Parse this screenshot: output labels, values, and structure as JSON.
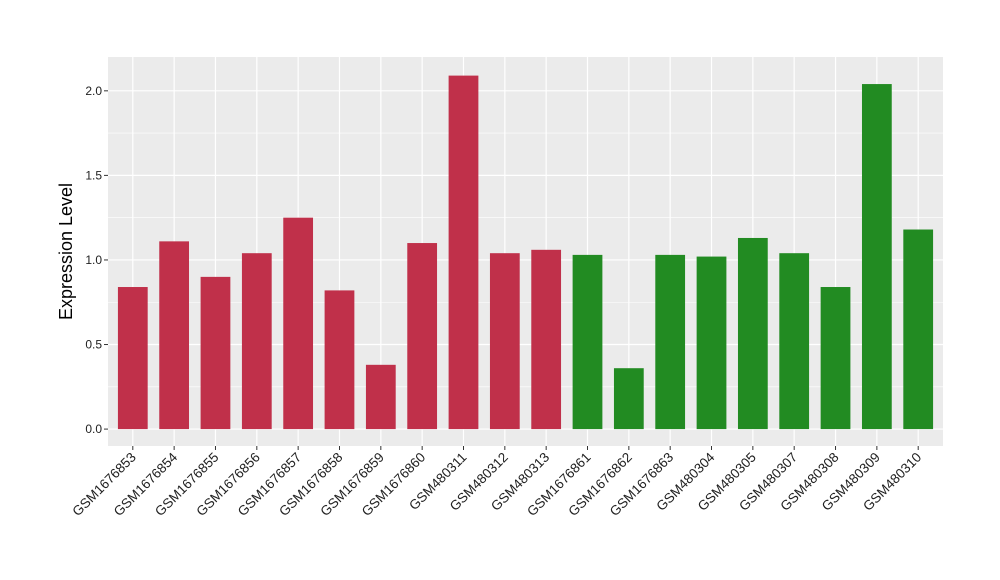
{
  "chart_data": {
    "type": "bar",
    "title": "",
    "xlabel": "",
    "ylabel": "Expression Level",
    "ylim": [
      -0.1,
      2.2
    ],
    "yticks": [
      0.0,
      0.5,
      1.0,
      1.5,
      2.0
    ],
    "ytick_labels": [
      "0.0",
      "0.5",
      "1.0",
      "1.5",
      "2.0"
    ],
    "grid": true,
    "legend": "none",
    "panel_color": "#EBEBEB",
    "grid_color": "#FFFFFF",
    "group_colors": {
      "group_1": "#C0304A",
      "group_2": "#228B22"
    },
    "categories": [
      "GSM1676853",
      "GSM1676854",
      "GSM1676855",
      "GSM1676856",
      "GSM1676857",
      "GSM1676858",
      "GSM1676859",
      "GSM1676860",
      "GSM480311",
      "GSM480312",
      "GSM480313",
      "GSM1676861",
      "GSM1676862",
      "GSM1676863",
      "GSM480304",
      "GSM480305",
      "GSM480307",
      "GSM480308",
      "GSM480309",
      "GSM480310"
    ],
    "values": [
      0.84,
      1.11,
      0.9,
      1.04,
      1.25,
      0.82,
      0.38,
      1.1,
      2.09,
      1.04,
      1.06,
      1.03,
      0.36,
      1.03,
      1.02,
      1.13,
      1.04,
      0.84,
      2.04,
      1.18
    ],
    "groups": [
      "group_1",
      "group_1",
      "group_1",
      "group_1",
      "group_1",
      "group_1",
      "group_1",
      "group_1",
      "group_1",
      "group_1",
      "group_1",
      "group_2",
      "group_2",
      "group_2",
      "group_2",
      "group_2",
      "group_2",
      "group_2",
      "group_2",
      "group_2"
    ]
  }
}
